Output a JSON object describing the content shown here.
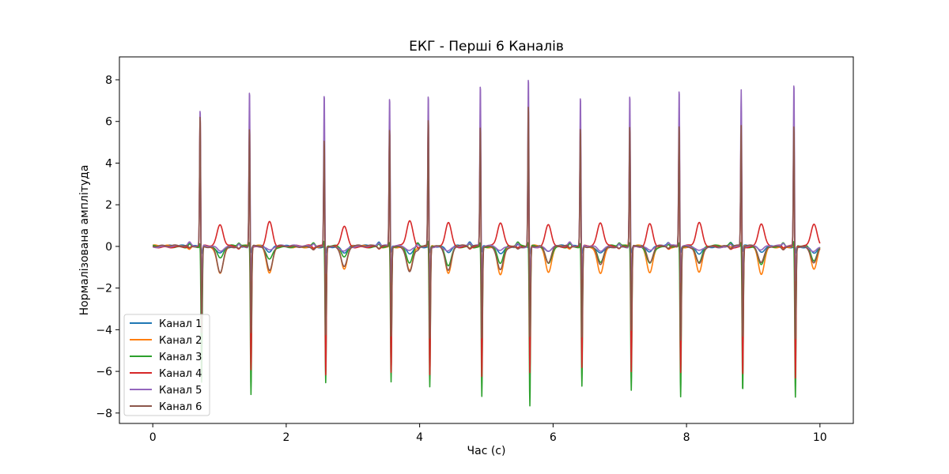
{
  "chart_data": {
    "type": "line",
    "title": "ЕКГ - Перші 6 Каналів",
    "xlabel": "Час (с)",
    "ylabel": "Нормалізована амплітуда",
    "xlim": [
      -0.5,
      10.5
    ],
    "ylim": [
      -8.5,
      9.1
    ],
    "xticks": [
      0,
      2,
      4,
      6,
      8,
      10
    ],
    "yticks": [
      -8,
      -6,
      -4,
      -2,
      0,
      2,
      4,
      6,
      8
    ],
    "grid": false,
    "legend_position": "lower-left",
    "beat_times_s": [
      0.71,
      1.45,
      2.57,
      3.55,
      4.13,
      4.91,
      5.63,
      6.41,
      7.15,
      7.89,
      8.82,
      9.61
    ],
    "series": [
      {
        "name": "Канал 1",
        "color": "#1f77b4",
        "r_peak": [
          0.0,
          0.0,
          0.0,
          0.0,
          0.0,
          0.0,
          0.0,
          0.0,
          0.0,
          0.0,
          0.0,
          0.0
        ],
        "s_trough": [
          -0.3,
          -0.3,
          -0.3,
          -0.3,
          -0.3,
          -0.3,
          -0.3,
          -0.3,
          -0.3,
          -0.3,
          -0.3,
          -0.3
        ],
        "t_wave": [
          -0.3,
          -0.3,
          -0.3,
          -0.3,
          -0.3,
          -0.3,
          -0.3,
          -0.3,
          -0.3,
          -0.3,
          -0.3,
          -0.3
        ]
      },
      {
        "name": "Канал 2",
        "color": "#ff7f0e",
        "r_peak": [
          0.2,
          0.2,
          0.2,
          0.2,
          0.2,
          0.2,
          0.2,
          0.2,
          0.2,
          0.2,
          0.2,
          0.2
        ],
        "s_trough": [
          -2.0,
          -2.0,
          -2.0,
          -2.0,
          -2.0,
          -2.0,
          -2.0,
          -2.0,
          -2.0,
          -2.0,
          -2.0,
          -2.0
        ],
        "t_wave": [
          -1.3,
          -1.3,
          -1.1,
          -1.1,
          -1.3,
          -1.3,
          -1.3,
          -1.3,
          -1.3,
          -1.2,
          -1.3,
          -1.1
        ]
      },
      {
        "name": "Канал 3",
        "color": "#2ca02c",
        "r_peak": [
          0.3,
          0.3,
          0.3,
          0.3,
          0.3,
          0.3,
          0.3,
          0.3,
          0.3,
          0.3,
          0.3,
          0.3
        ],
        "s_trough": [
          -6.5,
          -7.1,
          -6.6,
          -6.5,
          -6.8,
          -7.2,
          -7.7,
          -6.7,
          -6.9,
          -7.2,
          -7.0,
          -7.3
        ],
        "t_wave": [
          -0.6,
          -0.6,
          -0.5,
          -0.8,
          -0.9,
          -0.8,
          -0.8,
          -0.8,
          -0.8,
          -0.8,
          -0.8,
          -0.7
        ]
      },
      {
        "name": "Канал 4",
        "color": "#d62728",
        "r_peak": [
          6.5,
          6.0,
          5.7,
          6.0,
          6.6,
          6.1,
          6.0,
          6.0,
          6.1,
          6.2,
          6.1,
          6.2
        ],
        "s_trough": [
          -3.4,
          -6.0,
          -6.3,
          -6.2,
          -6.3,
          -6.4,
          -6.2,
          -6.0,
          -6.1,
          -6.2,
          -6.3,
          -6.5
        ],
        "t_wave": [
          1.0,
          1.2,
          1.0,
          1.2,
          1.2,
          1.1,
          1.1,
          1.1,
          1.1,
          1.1,
          1.1,
          1.1
        ]
      },
      {
        "name": "Канал 5",
        "color": "#9467bd",
        "r_peak": [
          6.7,
          7.7,
          7.5,
          7.3,
          7.5,
          7.9,
          8.3,
          7.3,
          7.5,
          7.7,
          7.6,
          8.0
        ],
        "s_trough": [
          -2.0,
          -1.8,
          -1.4,
          -1.9,
          -2.1,
          -2.0,
          -2.0,
          -1.8,
          -1.8,
          -1.9,
          -1.9,
          -1.8
        ],
        "t_wave": [
          -0.2,
          -0.2,
          -0.2,
          -0.2,
          -0.2,
          -0.2,
          -0.2,
          -0.2,
          -0.2,
          -0.2,
          -0.2,
          -0.2
        ]
      },
      {
        "name": "Канал 6",
        "color": "#8c564b",
        "r_peak": [
          6.5,
          5.9,
          5.4,
          5.9,
          6.4,
          6.0,
          7.0,
          5.9,
          6.0,
          6.1,
          6.0,
          6.1
        ],
        "s_trough": [
          -4.3,
          -4.3,
          -4.3,
          -4.4,
          -4.5,
          -4.5,
          -4.5,
          -4.5,
          -4.2,
          -4.6,
          -4.5,
          -4.5
        ],
        "t_wave": [
          -1.2,
          -1.2,
          -1.0,
          -1.2,
          -1.2,
          -1.1,
          -0.8,
          -0.8,
          -0.8,
          -0.8,
          -0.8,
          -0.8
        ]
      }
    ]
  }
}
